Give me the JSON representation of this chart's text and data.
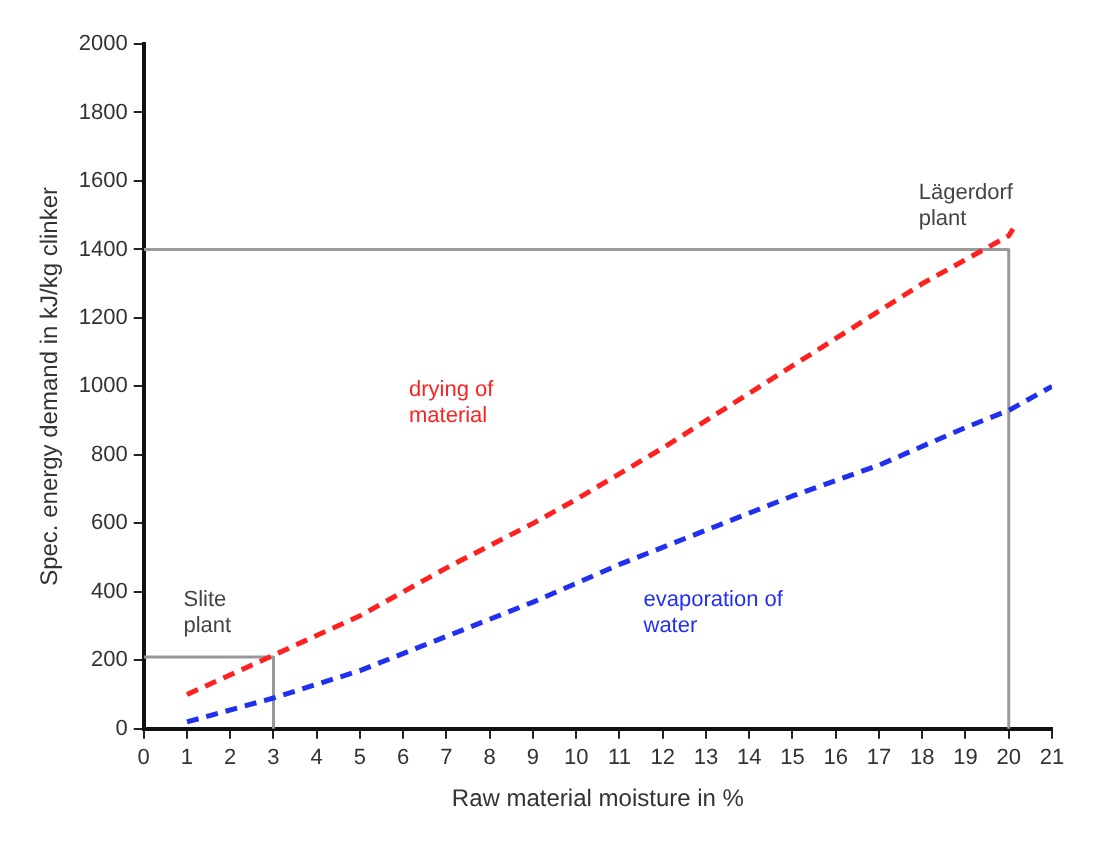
{
  "chart_data": {
    "type": "line",
    "xlabel": "Raw material moisture in %",
    "ylabel": "Spec. energy demand in kJ/kg clinker",
    "xlim": [
      0,
      21
    ],
    "xticks": [
      0,
      1,
      2,
      3,
      4,
      5,
      6,
      7,
      8,
      9,
      10,
      11,
      12,
      13,
      14,
      15,
      16,
      17,
      18,
      19,
      20,
      21
    ],
    "ylim": [
      0,
      2000
    ],
    "yticks": [
      0,
      200,
      400,
      600,
      800,
      1000,
      1200,
      1400,
      1600,
      1800,
      2000
    ],
    "grid": false,
    "legend": false,
    "marker": "none",
    "line_style": "dashed",
    "series": [
      {
        "name": "drying of material",
        "color": "#ff2020",
        "x": [
          1,
          3,
          5,
          7,
          9,
          10,
          12,
          14,
          16,
          18,
          20,
          20.1
        ],
        "values": [
          100,
          215,
          330,
          470,
          600,
          670,
          820,
          980,
          1140,
          1300,
          1440,
          1460
        ]
      },
      {
        "name": "evaporation of water",
        "color": "#2030ee",
        "x": [
          1,
          3,
          5,
          7,
          9,
          11,
          13,
          15,
          17,
          19,
          20,
          21
        ],
        "values": [
          20,
          90,
          170,
          270,
          370,
          480,
          580,
          680,
          770,
          880,
          930,
          1000
        ]
      },
      {
        "color": "#999999",
        "line_style": "solid",
        "x": [
          0,
          3,
          3
        ],
        "values": [
          210,
          210,
          0
        ]
      },
      {
        "color": "#999999",
        "line_style": "solid",
        "x": [
          0,
          20,
          20
        ],
        "values": [
          1400,
          1400,
          0
        ]
      }
    ],
    "annotations": [
      {
        "text": "Slite plant",
        "x": 3,
        "y": 210
      },
      {
        "text": "Lägerdorf plant",
        "x": 20,
        "y": 1400
      }
    ]
  }
}
